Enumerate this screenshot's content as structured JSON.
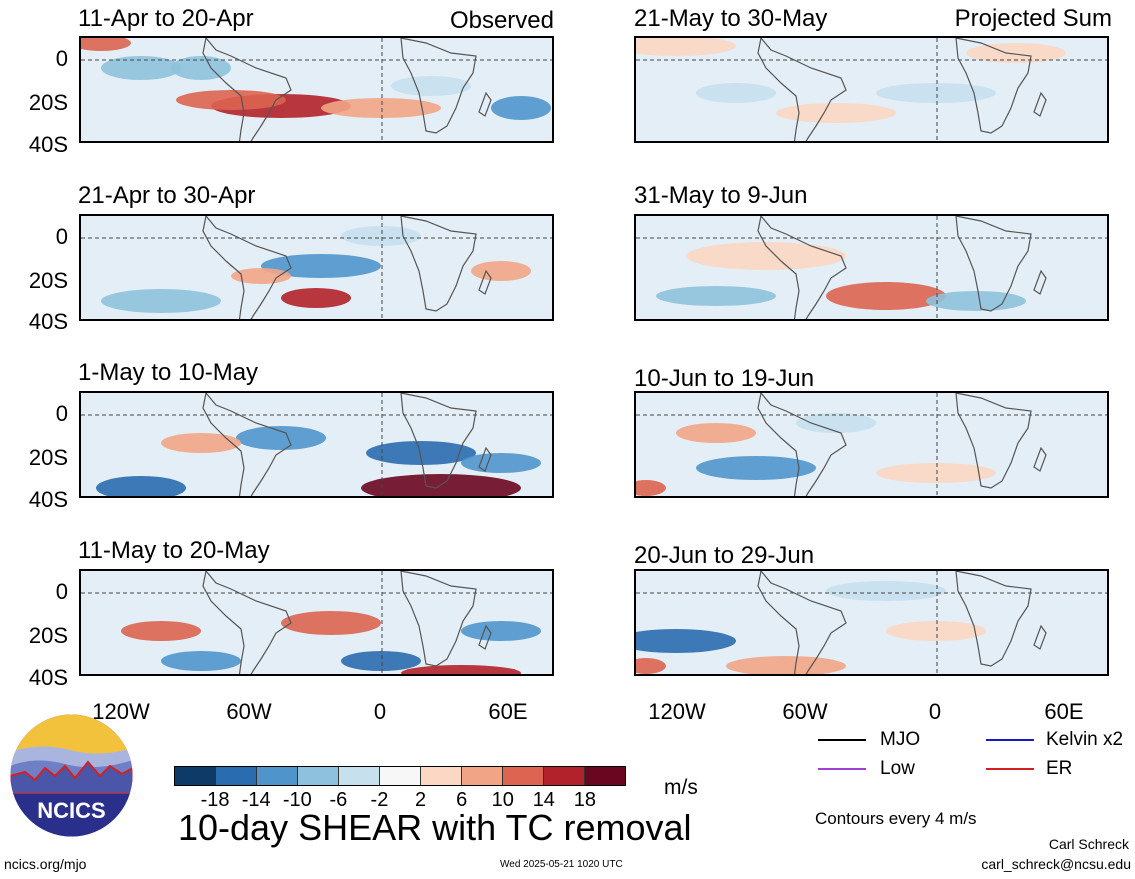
{
  "panels": [
    {
      "title": "11-Apr to 20-Apr",
      "label_right": "Observed"
    },
    {
      "title": "21-Apr to 30-Apr",
      "label_right": ""
    },
    {
      "title": "1-May to 10-May",
      "label_right": ""
    },
    {
      "title": "11-May to 20-May",
      "label_right": ""
    },
    {
      "title": "21-May to 30-May",
      "label_right": "Projected Sum"
    },
    {
      "title": "31-May to 9-Jun",
      "label_right": ""
    },
    {
      "title": "10-Jun to 19-Jun",
      "label_right": ""
    },
    {
      "title": "20-Jun to 29-Jun",
      "label_right": ""
    }
  ],
  "lat_labels": [
    "0",
    "20S",
    "40S"
  ],
  "lon_labels": [
    "120W",
    "60W",
    "0",
    "60E"
  ],
  "colorbar": {
    "ticks": [
      "-18",
      "-14",
      "-10",
      "-6",
      "-2",
      "2",
      "6",
      "10",
      "14",
      "18"
    ],
    "colors": [
      "#0d3a66",
      "#2a6cb0",
      "#4f95cc",
      "#8ec1dd",
      "#c7e0ee",
      "#f7f7f7",
      "#fbd7c4",
      "#f2a586",
      "#dc6450",
      "#b2222b",
      "#6a0620"
    ],
    "unit": "m/s"
  },
  "legend": [
    {
      "label": "MJO",
      "color": "#000000"
    },
    {
      "label": "Kelvin x2",
      "color": "#1a1ab8"
    },
    {
      "label": "Low",
      "color": "#a040d0"
    },
    {
      "label": "ER",
      "color": "#d02020"
    }
  ],
  "contours_note": "Contours every 4 m/s",
  "main_title": "10-day SHEAR with TC removal",
  "logo_text": "NCICS",
  "footer": {
    "left": "ncics.org/mjo",
    "center": "Wed 2025-05-21 1020 UTC",
    "author": "Carl Schreck",
    "email": "carl_schreck@ncsu.edu"
  }
}
